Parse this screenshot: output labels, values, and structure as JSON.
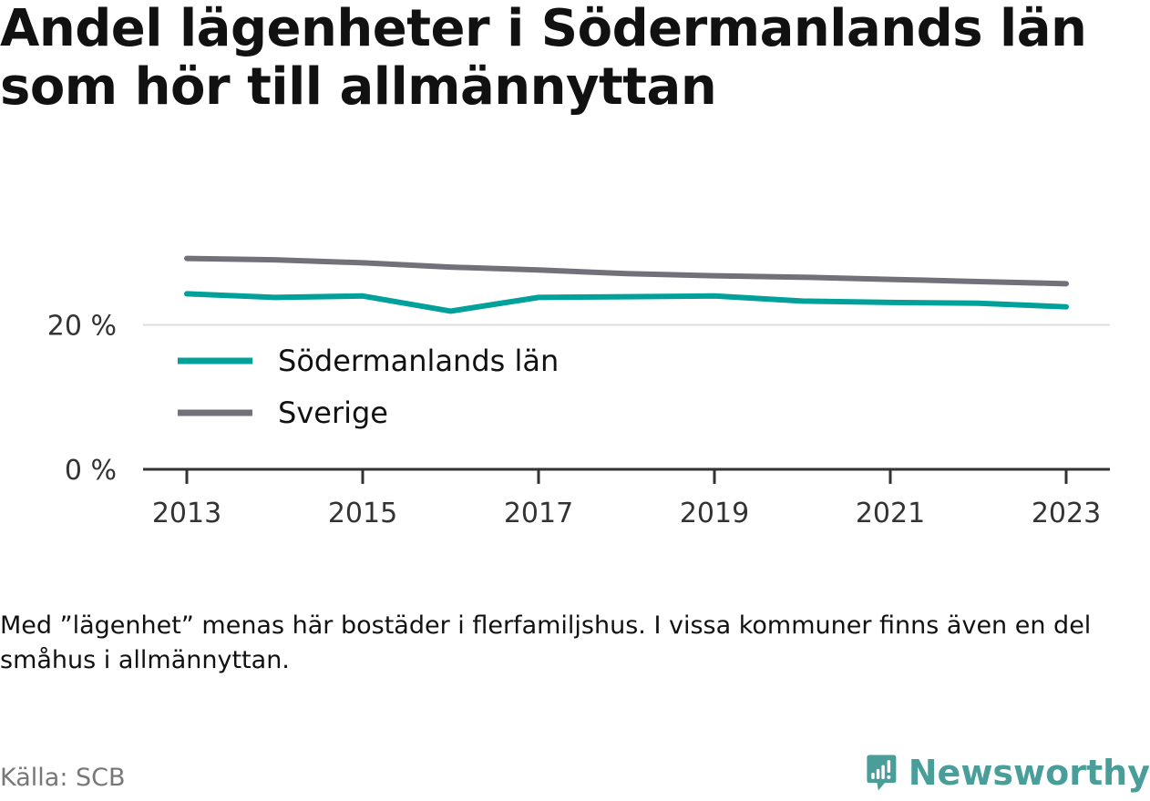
{
  "header": {
    "title": "Andel lägenheter i Södermanlands län som hör till allmännyttan"
  },
  "chart_data": {
    "type": "line",
    "title": "Andel lägenheter i Södermanlands län som hör till allmännyttan",
    "x": [
      2013,
      2014,
      2015,
      2016,
      2017,
      2018,
      2019,
      2020,
      2021,
      2022,
      2023
    ],
    "series": [
      {
        "name": "Södermanlands län",
        "color": "#00a19a",
        "values": [
          24.3,
          23.8,
          24.0,
          21.9,
          23.8,
          23.9,
          24.0,
          23.3,
          23.1,
          23.0,
          22.5
        ]
      },
      {
        "name": "Sverige",
        "color": "#727078",
        "values": [
          29.2,
          29.0,
          28.6,
          28.0,
          27.6,
          27.1,
          26.8,
          26.6,
          26.3,
          26.0,
          25.7
        ]
      }
    ],
    "x_ticks": [
      "2013",
      "2015",
      "2017",
      "2019",
      "2021",
      "2023"
    ],
    "y_ticks": [
      "0 %",
      "20 %"
    ],
    "ylim": [
      0,
      40
    ],
    "grid": true,
    "legend": "left"
  },
  "footer": {
    "note": "Med ”lägenhet” menas här bostäder i flerfamiljshus. I vissa kommuner finns även en del småhus i allmännyttan.",
    "source": "Källa: SCB",
    "brand": "Newsworthy",
    "brand_color": "#4a9e9a"
  }
}
